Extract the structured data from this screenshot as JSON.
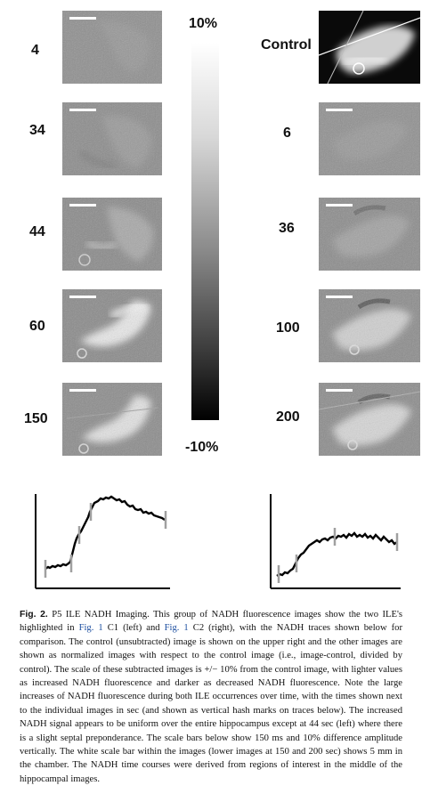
{
  "left_column": {
    "labels": [
      "4",
      "34",
      "44",
      "60",
      "150"
    ]
  },
  "right_column": {
    "labels": [
      "Control",
      "6",
      "36",
      "100",
      "200"
    ]
  },
  "color_scale": {
    "top_label": "10%",
    "bottom_label": "-10%"
  },
  "caption": {
    "fig_label": "Fig. 2.",
    "title": "P5 ILE NADH Imaging.",
    "t1": "This group of NADH fluorescence images show the two ILE's highlighted in",
    "ref1": "Fig. 1",
    "t2": "C1 (left) and",
    "ref2": "Fig. 1",
    "t3": "C2 (right), with the NADH traces shown below for comparison. The control (unsubtracted) image is shown on the upper right and the other images are shown as normalized images with respect to the control image (i.e., image-control, divided by control). The scale of these subtracted images is +/− 10% from the control image, with lighter values as increased NADH fluorescence and darker as decreased NADH fluorescence. Note the large increases of NADH fluorescence during both ILE occurrences over time, with the times shown next to the individual images in sec (and shown as vertical hash marks on traces below). The increased NADH signal appears to be uniform over the entire hippocampus except at 44 sec (left) where there is a slight septal preponderance. The scale bars below show 150 ms and 10% difference amplitude vertically. The white scale bar within the images (lower images at 150 and 200 sec) shows 5 mm in the chamber. The NADH time courses were derived from regions of interest in the middle of the hippocampal images."
  }
}
